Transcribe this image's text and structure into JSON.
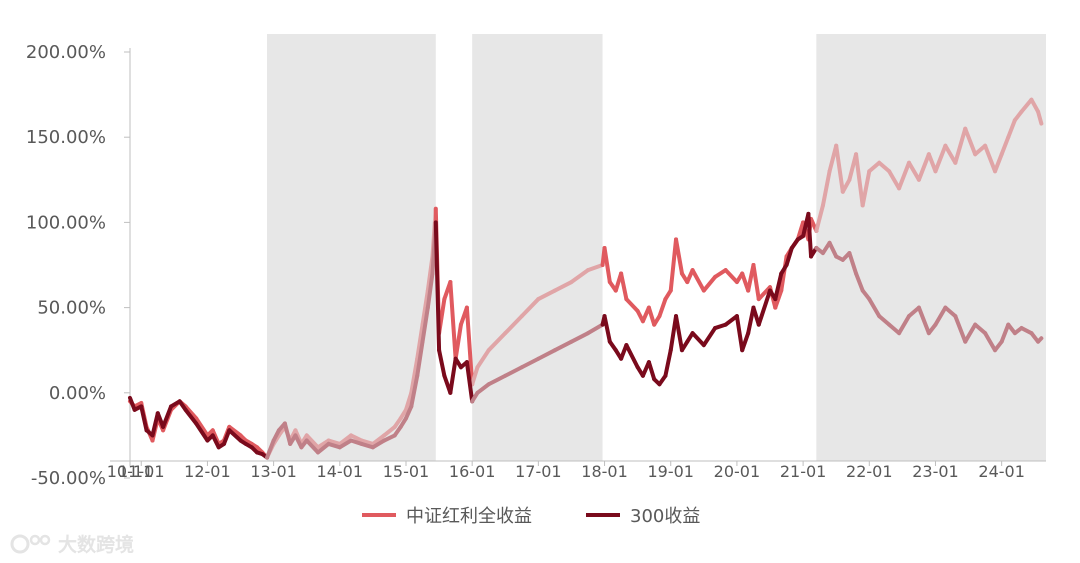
{
  "chart_data": {
    "type": "line",
    "title": "",
    "xlabel": "",
    "ylabel": "",
    "y_tick_labels": [
      "200.00%",
      "150.00%",
      "100.00%",
      "50.00%",
      "0.00%",
      "-50.00%"
    ],
    "y_ticks": [
      200,
      150,
      100,
      50,
      0,
      -50
    ],
    "ylim": [
      -50,
      200
    ],
    "x_tick_labels": [
      "10-11",
      "11-01",
      "12-01",
      "13-01",
      "14-01",
      "15-01",
      "16-01",
      "17-01",
      "18-01",
      "19-01",
      "20-01",
      "21-01",
      "22-01",
      "23-01",
      "24-01"
    ],
    "x_ticks": [
      2010.83,
      2011.0,
      2012.0,
      2013.0,
      2014.0,
      2015.0,
      2016.0,
      2017.0,
      2018.0,
      2019.0,
      2020.0,
      2021.0,
      2022.0,
      2023.0,
      2024.0
    ],
    "xlim": [
      2010.83,
      2024.67
    ],
    "shaded_periods": [
      [
        2012.9,
        2015.45
      ],
      [
        2016.0,
        2017.97
      ],
      [
        2021.2,
        2024.67
      ]
    ],
    "grid": false,
    "legend_position": "bottom",
    "series": [
      {
        "name": "中证红利全收益",
        "color": "#e05a5f",
        "x": [
          2010.83,
          2010.9,
          2011.0,
          2011.08,
          2011.17,
          2011.25,
          2011.33,
          2011.45,
          2011.58,
          2011.67,
          2011.83,
          2012.0,
          2012.08,
          2012.17,
          2012.25,
          2012.33,
          2012.5,
          2012.58,
          2012.67,
          2012.75,
          2012.83,
          2012.9,
          2013.0,
          2013.08,
          2013.17,
          2013.25,
          2013.33,
          2013.42,
          2013.5,
          2013.67,
          2013.83,
          2014.0,
          2014.17,
          2014.33,
          2014.5,
          2014.67,
          2014.83,
          2014.92,
          2015.0,
          2015.08,
          2015.17,
          2015.25,
          2015.33,
          2015.4,
          2015.45,
          2015.5,
          2015.58,
          2015.67,
          2015.75,
          2015.83,
          2015.92,
          2016.0,
          2016.08,
          2016.25,
          2016.5,
          2016.75,
          2017.0,
          2017.25,
          2017.5,
          2017.75,
          2017.97,
          2018.0,
          2018.08,
          2018.17,
          2018.25,
          2018.33,
          2018.5,
          2018.58,
          2018.67,
          2018.75,
          2018.83,
          2018.92,
          2019.0,
          2019.08,
          2019.17,
          2019.25,
          2019.33,
          2019.5,
          2019.67,
          2019.83,
          2020.0,
          2020.08,
          2020.17,
          2020.25,
          2020.33,
          2020.5,
          2020.58,
          2020.67,
          2020.75,
          2020.83,
          2020.92,
          2021.0,
          2021.08,
          2021.12,
          2021.2,
          2021.3,
          2021.4,
          2021.5,
          2021.6,
          2021.7,
          2021.8,
          2021.9,
          2022.0,
          2022.15,
          2022.3,
          2022.45,
          2022.6,
          2022.75,
          2022.9,
          2023.0,
          2023.15,
          2023.3,
          2023.45,
          2023.6,
          2023.75,
          2023.9,
          2024.0,
          2024.1,
          2024.2,
          2024.3,
          2024.45,
          2024.55,
          2024.6
        ],
        "values": [
          -5,
          -8,
          -6,
          -20,
          -28,
          -15,
          -22,
          -10,
          -5,
          -8,
          -15,
          -25,
          -22,
          -30,
          -28,
          -20,
          -25,
          -28,
          -30,
          -32,
          -35,
          -38,
          -30,
          -25,
          -20,
          -28,
          -22,
          -30,
          -25,
          -32,
          -28,
          -30,
          -25,
          -28,
          -30,
          -25,
          -20,
          -15,
          -10,
          0,
          20,
          40,
          60,
          80,
          108,
          35,
          55,
          65,
          20,
          40,
          50,
          5,
          15,
          25,
          35,
          45,
          55,
          60,
          65,
          72,
          75,
          85,
          65,
          60,
          70,
          55,
          48,
          42,
          50,
          40,
          45,
          55,
          60,
          90,
          70,
          65,
          72,
          60,
          68,
          72,
          65,
          70,
          60,
          75,
          55,
          62,
          50,
          60,
          80,
          85,
          90,
          100,
          90,
          102,
          95,
          110,
          130,
          145,
          118,
          125,
          140,
          110,
          130,
          135,
          130,
          120,
          135,
          125,
          140,
          130,
          145,
          135,
          155,
          140,
          145,
          130,
          140,
          150,
          160,
          165,
          172,
          165,
          158
        ],
        "emphasized_ranges": [
          [
            2010.83,
            2012.9
          ],
          [
            2015.45,
            2016.0
          ],
          [
            2017.97,
            2021.2
          ]
        ]
      },
      {
        "name": "300收益",
        "color": "#7a0a1c",
        "x": [
          2010.83,
          2010.9,
          2011.0,
          2011.08,
          2011.17,
          2011.25,
          2011.33,
          2011.45,
          2011.58,
          2011.67,
          2011.83,
          2012.0,
          2012.08,
          2012.17,
          2012.25,
          2012.33,
          2012.5,
          2012.58,
          2012.67,
          2012.75,
          2012.83,
          2012.9,
          2013.0,
          2013.08,
          2013.17,
          2013.25,
          2013.33,
          2013.42,
          2013.5,
          2013.67,
          2013.83,
          2014.0,
          2014.17,
          2014.33,
          2014.5,
          2014.67,
          2014.83,
          2014.92,
          2015.0,
          2015.08,
          2015.17,
          2015.25,
          2015.33,
          2015.4,
          2015.45,
          2015.5,
          2015.58,
          2015.67,
          2015.75,
          2015.83,
          2015.92,
          2016.0,
          2016.08,
          2016.25,
          2016.5,
          2016.75,
          2017.0,
          2017.25,
          2017.5,
          2017.75,
          2017.97,
          2018.0,
          2018.08,
          2018.17,
          2018.25,
          2018.33,
          2018.5,
          2018.58,
          2018.67,
          2018.75,
          2018.83,
          2018.92,
          2019.0,
          2019.08,
          2019.17,
          2019.25,
          2019.33,
          2019.5,
          2019.67,
          2019.83,
          2020.0,
          2020.08,
          2020.17,
          2020.25,
          2020.33,
          2020.5,
          2020.58,
          2020.67,
          2020.75,
          2020.83,
          2020.92,
          2021.0,
          2021.08,
          2021.12,
          2021.2,
          2021.3,
          2021.4,
          2021.5,
          2021.6,
          2021.7,
          2021.8,
          2021.9,
          2022.0,
          2022.15,
          2022.3,
          2022.45,
          2022.6,
          2022.75,
          2022.9,
          2023.0,
          2023.15,
          2023.3,
          2023.45,
          2023.6,
          2023.75,
          2023.9,
          2024.0,
          2024.1,
          2024.2,
          2024.3,
          2024.45,
          2024.55,
          2024.6
        ],
        "values": [
          -3,
          -10,
          -8,
          -22,
          -25,
          -12,
          -20,
          -8,
          -5,
          -10,
          -18,
          -28,
          -25,
          -32,
          -30,
          -22,
          -28,
          -30,
          -32,
          -35,
          -36,
          -38,
          -28,
          -22,
          -18,
          -30,
          -25,
          -32,
          -28,
          -35,
          -30,
          -32,
          -28,
          -30,
          -32,
          -28,
          -25,
          -20,
          -15,
          -8,
          10,
          30,
          50,
          70,
          100,
          25,
          10,
          0,
          20,
          15,
          18,
          -5,
          0,
          5,
          10,
          15,
          20,
          25,
          30,
          35,
          40,
          45,
          30,
          25,
          20,
          28,
          15,
          10,
          18,
          8,
          5,
          10,
          25,
          45,
          25,
          30,
          35,
          28,
          38,
          40,
          45,
          25,
          35,
          50,
          40,
          60,
          55,
          70,
          75,
          85,
          90,
          92,
          105,
          80,
          85,
          82,
          88,
          80,
          78,
          82,
          70,
          60,
          55,
          45,
          40,
          35,
          45,
          50,
          35,
          40,
          50,
          45,
          30,
          40,
          35,
          25,
          30,
          40,
          35,
          38,
          35,
          30,
          32
        ],
        "emphasized_ranges": [
          [
            2010.83,
            2012.9
          ],
          [
            2015.45,
            2016.0
          ],
          [
            2017.97,
            2021.2
          ]
        ]
      }
    ]
  },
  "legend": {
    "items": [
      {
        "label": "中证红利全收益",
        "color": "#e05a5f"
      },
      {
        "label": "300收益",
        "color": "#7a0a1c"
      }
    ]
  },
  "watermark": {
    "text": "大数跨境"
  }
}
